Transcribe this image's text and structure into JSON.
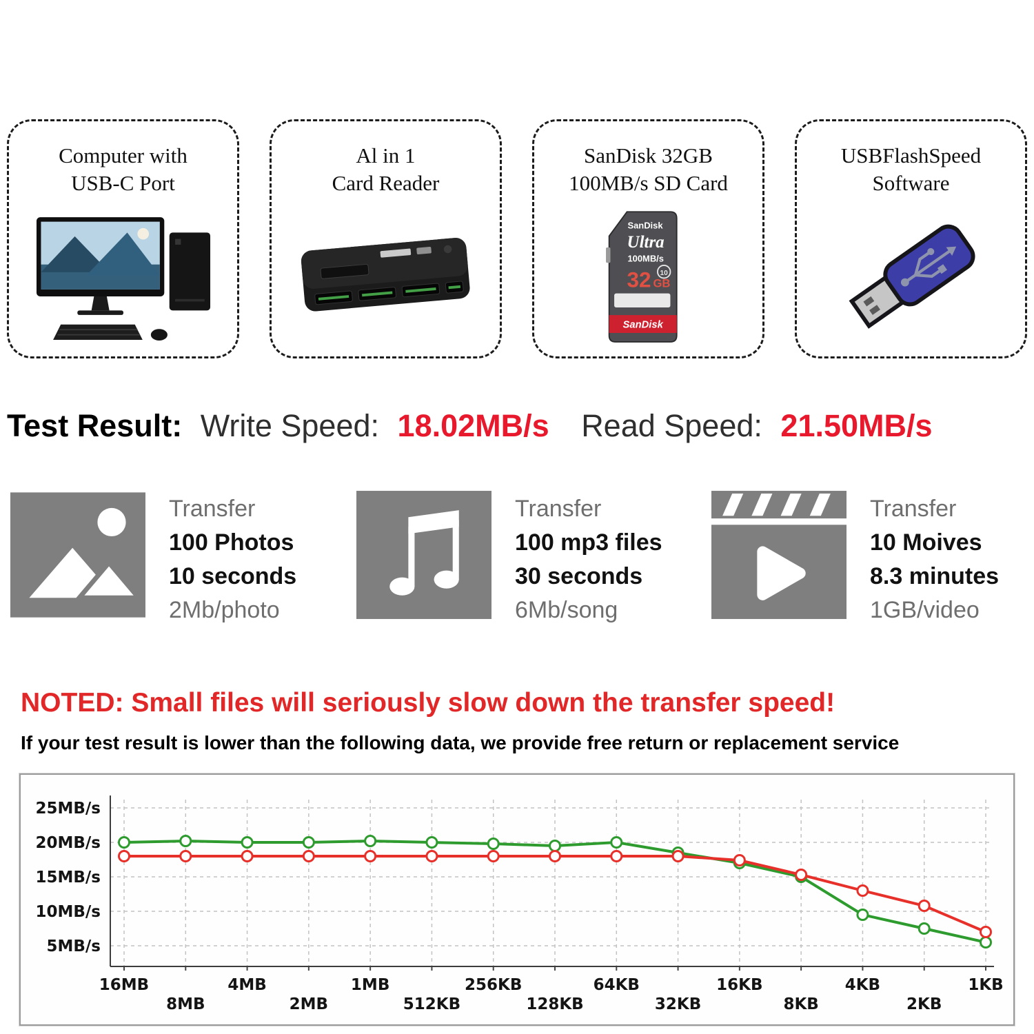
{
  "colors": {
    "accent_red": "#e8192c",
    "note_red": "#e12727",
    "chart_read_green": "#2e9b2e",
    "chart_write_red": "#e8302a",
    "icon_gray": "#7f7f7f"
  },
  "setup_cards": [
    {
      "icon": "computer-icon",
      "title_line1": "Computer with",
      "title_line2": "USB-C Port"
    },
    {
      "icon": "card-reader-icon",
      "title_line1": "Al in 1",
      "title_line2": "Card Reader"
    },
    {
      "icon": "sd-card-icon",
      "title_line1": "SanDisk 32GB",
      "title_line2": "100MB/s SD Card"
    },
    {
      "icon": "usb-flash-drive-icon",
      "title_line1": "USBFlashSpeed",
      "title_line2": "Software"
    }
  ],
  "sd_card": {
    "brand": "SanDisk",
    "series": "Ultra",
    "speed": "100MB/s",
    "class": "10",
    "capacity_number": "32",
    "capacity_unit": "GB",
    "bottom_label": "SanDisk"
  },
  "test_result": {
    "label": "Test Result:",
    "write_label": "Write Speed:",
    "write_value": "18.02MB/s",
    "read_label": "Read Speed:",
    "read_value": "21.50MB/s"
  },
  "transfer_blocks": [
    {
      "icon": "photo-icon",
      "line1": "Transfer",
      "line2": "100 Photos",
      "line3": "10 seconds",
      "line4": "2Mb/photo"
    },
    {
      "icon": "music-note-icon",
      "line1": "Transfer",
      "line2": "100 mp3 files",
      "line3": "30 seconds",
      "line4": "6Mb/song"
    },
    {
      "icon": "clapperboard-icon",
      "line1": "Transfer",
      "line2": "10 Moives",
      "line3": "8.3 minutes",
      "line4": "1GB/video"
    }
  ],
  "note": {
    "headline": "NOTED: Small files will seriously slow down the transfer speed!",
    "subline": "If your test result is lower than the following data, we provide free return or replacement service"
  },
  "chart_data": {
    "type": "line",
    "title": "",
    "xlabel": "",
    "ylabel": "",
    "categories": [
      "16MB",
      "8MB",
      "4MB",
      "2MB",
      "1MB",
      "512KB",
      "256KB",
      "128KB",
      "64KB",
      "32KB",
      "16KB",
      "8KB",
      "4KB",
      "2KB",
      "1KB"
    ],
    "y_ticks": [
      25,
      20,
      15,
      10,
      5
    ],
    "y_tick_labels": [
      "25MB/s",
      "20MB/s",
      "15MB/s",
      "10MB/s",
      "5MB/s"
    ],
    "ylim": [
      0,
      27
    ],
    "grid": true,
    "legend": "none",
    "series": [
      {
        "name": "Read Speed",
        "color": "#2e9b2e",
        "values": [
          20,
          20.2,
          20,
          20,
          20.2,
          20,
          19.8,
          19.5,
          20,
          18.5,
          17,
          15,
          9.5,
          7.5,
          5.5
        ]
      },
      {
        "name": "Write Speed",
        "color": "#e8302a",
        "values": [
          18,
          18,
          18,
          18,
          18,
          18,
          18,
          18,
          18,
          18,
          17.4,
          15.3,
          13,
          10.8,
          7
        ]
      }
    ]
  }
}
